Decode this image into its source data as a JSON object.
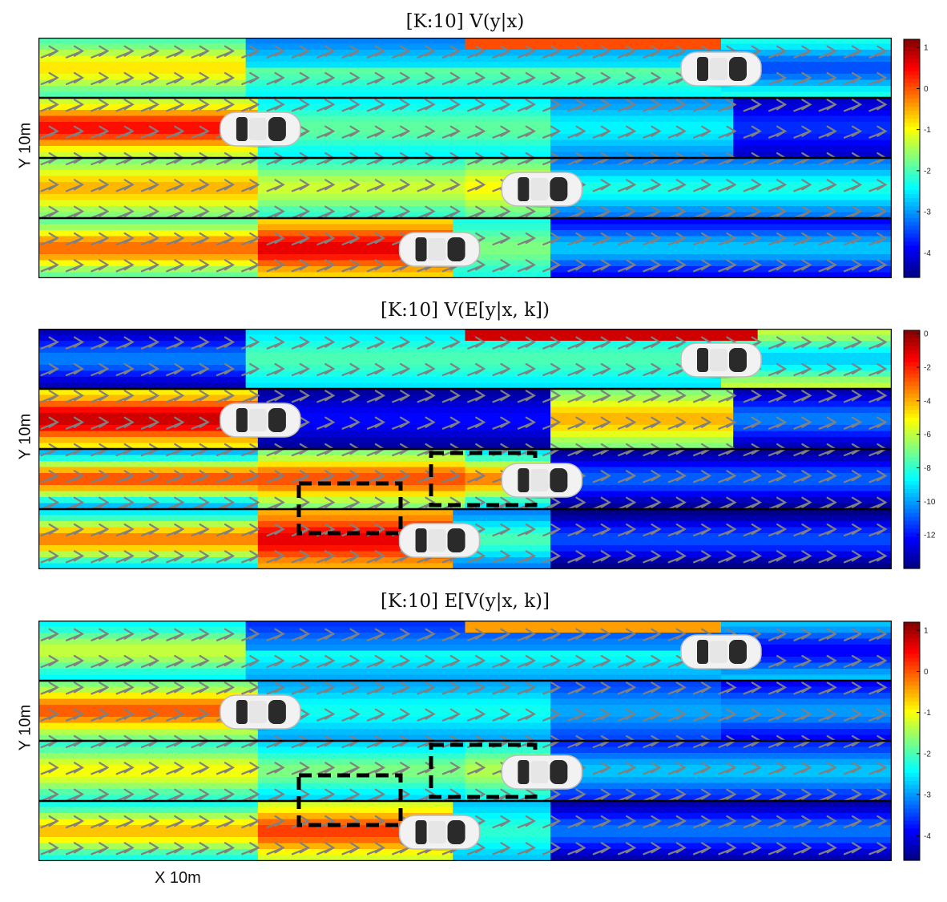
{
  "chart_data": [
    {
      "type": "heatmap",
      "title": "[K:10] V(y|x)",
      "xlabel": "",
      "ylabel": "Y 10m",
      "colorbar": {
        "min": -4.6,
        "max": 1.2,
        "ticks": [
          1,
          0,
          -1,
          -2,
          -3,
          -4
        ]
      },
      "lanes": 4,
      "cars": [
        {
          "name": "car-top-right",
          "x": 0.8,
          "y": 0.13
        },
        {
          "name": "car-lane2-left",
          "x": 0.26,
          "y": 0.38
        },
        {
          "name": "car-lane3-mid",
          "x": 0.59,
          "y": 0.63
        },
        {
          "name": "car-lane4-mid",
          "x": 0.47,
          "y": 0.88
        }
      ],
      "regions": [],
      "value_field": "variance_true"
    },
    {
      "type": "heatmap",
      "title": "[K:10] V(E[y|x, k])",
      "xlabel": "",
      "ylabel": "Y 10m",
      "colorbar": {
        "min": -14,
        "max": 0.2,
        "ticks": [
          0,
          -2,
          -4,
          -6,
          -8,
          -10,
          -12
        ]
      },
      "lanes": 4,
      "cars": [
        {
          "name": "car-top-right",
          "x": 0.8,
          "y": 0.13
        },
        {
          "name": "car-lane2-left",
          "x": 0.26,
          "y": 0.38
        },
        {
          "name": "car-lane3-mid",
          "x": 0.59,
          "y": 0.63
        },
        {
          "name": "car-lane4-mid",
          "x": 0.47,
          "y": 0.88
        }
      ],
      "regions": [
        "dashed-box-1",
        "dashed-box-2"
      ],
      "value_field": "variance_of_expectation"
    },
    {
      "type": "heatmap",
      "title": "[K:10] E[V(y|x, k)]",
      "xlabel": "X 10m",
      "ylabel": "Y 10m",
      "colorbar": {
        "min": -4.6,
        "max": 1.2,
        "ticks": [
          1,
          0,
          -1,
          -2,
          -3,
          -4
        ]
      },
      "lanes": 4,
      "cars": [
        {
          "name": "car-top-right",
          "x": 0.8,
          "y": 0.13
        },
        {
          "name": "car-lane2-left",
          "x": 0.26,
          "y": 0.38
        },
        {
          "name": "car-lane3-mid",
          "x": 0.59,
          "y": 0.63
        },
        {
          "name": "car-lane4-mid",
          "x": 0.47,
          "y": 0.88
        }
      ],
      "regions": [
        "dashed-box-1",
        "dashed-box-2"
      ],
      "value_field": "expected_variance"
    }
  ],
  "labels": {
    "title1": "[K:10] V(y|x)",
    "title2": "[K:10] V(E[y|x, k])",
    "title3": "[K:10] E[V(y|x, k)]",
    "ylabel": "Y 10m",
    "xlabel": "X 10m"
  },
  "colors": {
    "lane_line": "#000000",
    "arrow": "#808080",
    "box": "#000000"
  }
}
